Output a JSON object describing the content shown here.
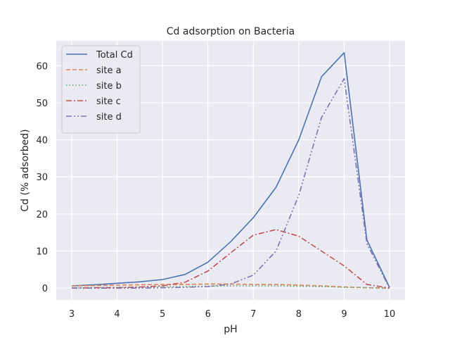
{
  "chart_data": {
    "type": "line",
    "title": "Cd adsorption on Bacteria",
    "xlabel": "pH",
    "ylabel": "Cd (% adsorbed)",
    "xlim": [
      2.66,
      10.34
    ],
    "ylim": [
      -3.2,
      66.7
    ],
    "xticks": [
      3,
      4,
      5,
      6,
      7,
      8,
      9,
      10
    ],
    "yticks": [
      0,
      10,
      20,
      30,
      40,
      50,
      60
    ],
    "grid": true,
    "legend_position": "upper-left",
    "x": [
      3,
      3.5,
      4,
      4.5,
      5,
      5.5,
      6,
      6.5,
      7,
      7.5,
      8,
      8.5,
      9,
      9.5,
      10
    ],
    "series": [
      {
        "name": "Total Cd",
        "color": "#4c72b0",
        "dash": "solid",
        "values": [
          0.6,
          0.9,
          1.3,
          1.7,
          2.3,
          3.7,
          7.0,
          12.5,
          19.0,
          27.2,
          40.0,
          57.0,
          63.5,
          13.0,
          0.2
        ]
      },
      {
        "name": "site a",
        "color": "#dd8452",
        "dash": "dashed",
        "values": [
          0.6,
          0.7,
          0.8,
          0.9,
          1.0,
          1.0,
          1.1,
          1.1,
          1.0,
          1.0,
          0.8,
          0.6,
          0.3,
          0.1,
          0.0
        ]
      },
      {
        "name": "site b",
        "color": "#55a868",
        "dash": "dotted",
        "values": [
          0.1,
          0.1,
          0.2,
          0.2,
          0.3,
          0.4,
          0.5,
          0.6,
          0.6,
          0.6,
          0.5,
          0.4,
          0.2,
          0.1,
          0.0
        ]
      },
      {
        "name": "site c",
        "color": "#c44e52",
        "dash": "dashdot",
        "values": [
          0.0,
          0.1,
          0.1,
          0.3,
          0.6,
          1.6,
          4.6,
          9.5,
          14.3,
          15.8,
          14.0,
          10.0,
          6.0,
          1.0,
          0.0
        ]
      },
      {
        "name": "site d",
        "color": "#8172b3",
        "dash": "dashdotdot",
        "values": [
          0.0,
          0.0,
          0.0,
          0.0,
          0.1,
          0.2,
          0.4,
          1.1,
          3.5,
          10.0,
          25.0,
          46.0,
          56.5,
          12.0,
          0.0
        ]
      }
    ]
  }
}
